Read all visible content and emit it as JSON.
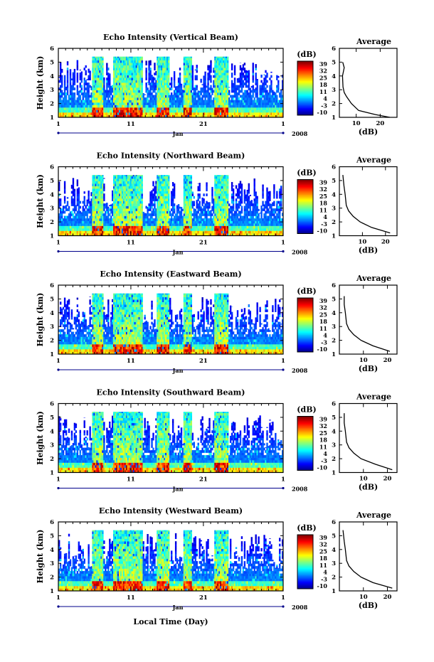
{
  "chart_data": [
    {
      "type": "heatmap",
      "title": "Echo Intensity (Vertical Beam)",
      "ylabel": "Height (km)",
      "ylim": [
        1,
        6
      ],
      "yticks": [
        "1",
        "2",
        "3",
        "4",
        "5",
        "6"
      ],
      "xticks": [
        "1",
        "11",
        "21",
        "1"
      ],
      "xlim_days": [
        1,
        32
      ],
      "month_label": "Jan",
      "year_label": "2008",
      "colorbar_unit": "(dB)",
      "colorbar_ticks": [
        "39",
        "32",
        "25",
        "18",
        "11",
        "4",
        "-3",
        "-10"
      ],
      "colorscale": "jet",
      "top_range_km": 5.4,
      "average": {
        "title": "Average",
        "xlabel": "(dB)",
        "xticks": [
          "10",
          "20"
        ],
        "xlim": [
          3,
          27
        ],
        "height_km": [
          1.0,
          1.2,
          1.5,
          2.0,
          2.5,
          2.8,
          3.2,
          4.0,
          4.6,
          5.0
        ],
        "db": [
          24,
          18,
          11,
          8,
          6,
          5,
          4.5,
          4.3,
          5,
          4.4
        ]
      }
    },
    {
      "type": "heatmap",
      "title": "Echo Intensity (Northward Beam)",
      "ylabel": "Height (km)",
      "ylim": [
        1,
        6
      ],
      "yticks": [
        "1",
        "2",
        "3",
        "4",
        "5",
        "6"
      ],
      "xticks": [
        "1",
        "11",
        "21",
        "1"
      ],
      "xlim_days": [
        1,
        32
      ],
      "month_label": "Jan",
      "year_label": "2008",
      "colorbar_unit": "(dB)",
      "colorbar_ticks": [
        "39",
        "32",
        "25",
        "18",
        "11",
        "4",
        "-3",
        "-10"
      ],
      "colorscale": "jet",
      "top_range_km": 5.4,
      "average": {
        "title": "Average",
        "xlabel": "(dB)",
        "xticks": [
          "10",
          "20"
        ],
        "xlim": [
          0,
          25
        ],
        "height_km": [
          1.2,
          1.6,
          2.0,
          2.4,
          2.8,
          3.2,
          4.0,
          4.6,
          5.4
        ],
        "db": [
          22,
          14,
          9,
          6,
          4,
          3,
          2.5,
          2,
          1.5
        ]
      }
    },
    {
      "type": "heatmap",
      "title": "Echo Intensity (Eastward Beam)",
      "ylabel": "Height (km)",
      "ylim": [
        1,
        6
      ],
      "yticks": [
        "1",
        "2",
        "3",
        "4",
        "5",
        "6"
      ],
      "xticks": [
        "1",
        "11",
        "21",
        "1"
      ],
      "xlim_days": [
        1,
        32
      ],
      "month_label": "Jan",
      "year_label": "2008",
      "colorbar_unit": "(dB)",
      "colorbar_ticks": [
        "39",
        "32",
        "25",
        "18",
        "11",
        "4",
        "-3",
        "-10"
      ],
      "colorscale": "jet",
      "top_range_km": 5.4,
      "average": {
        "title": "Average",
        "xlabel": "(dB)",
        "xticks": [
          "10",
          "20"
        ],
        "xlim": [
          0,
          24
        ],
        "height_km": [
          1.2,
          1.6,
          2.0,
          2.4,
          2.8,
          3.2,
          4.0,
          4.6,
          5.2
        ],
        "db": [
          21,
          14,
          9,
          6,
          4,
          3,
          2.5,
          2,
          2
        ]
      }
    },
    {
      "type": "heatmap",
      "title": "Echo Intensity (Southward Beam)",
      "ylabel": "Height (km)",
      "ylim": [
        1,
        6
      ],
      "yticks": [
        "1",
        "2",
        "3",
        "4",
        "5",
        "6"
      ],
      "xticks": [
        "1",
        "11",
        "21",
        "1"
      ],
      "xlim_days": [
        1,
        32
      ],
      "month_label": "Jan",
      "year_label": "2008",
      "colorbar_unit": "(dB)",
      "colorbar_ticks": [
        "39",
        "32",
        "25",
        "18",
        "11",
        "4",
        "-3",
        "-10"
      ],
      "colorscale": "jet",
      "top_range_km": 5.4,
      "average": {
        "title": "Average",
        "xlabel": "(dB)",
        "xticks": [
          "10",
          "20"
        ],
        "xlim": [
          0,
          24
        ],
        "height_km": [
          1.2,
          1.6,
          2.0,
          2.4,
          2.8,
          3.2,
          4.0,
          4.6,
          5.3
        ],
        "db": [
          22,
          15,
          9,
          6,
          4,
          3,
          2.5,
          2,
          2
        ]
      }
    },
    {
      "type": "heatmap",
      "title": "Echo Intensity (Westward Beam)",
      "ylabel": "Height (km)",
      "ylim": [
        1,
        6
      ],
      "yticks": [
        "1",
        "2",
        "3",
        "4",
        "5",
        "6"
      ],
      "xticks": [
        "1",
        "11",
        "21",
        "1"
      ],
      "xlim_days": [
        1,
        32
      ],
      "month_label": "Jan",
      "year_label": "2008",
      "colorbar_unit": "(dB)",
      "colorbar_ticks": [
        "39",
        "32",
        "25",
        "18",
        "11",
        "4",
        "-3",
        "-10"
      ],
      "colorscale": "jet",
      "top_range_km": 5.4,
      "average": {
        "title": "Average",
        "xlabel": "(dB)",
        "xticks": [
          "10",
          "20"
        ],
        "xlim": [
          0,
          24
        ],
        "height_km": [
          1.2,
          1.6,
          2.0,
          2.4,
          2.8,
          3.2,
          4.0,
          4.6,
          5.4
        ],
        "db": [
          22,
          14,
          9,
          6,
          4,
          3,
          2.5,
          2,
          1.5
        ]
      }
    }
  ],
  "figure_xlabel": "Local Time (Day)"
}
